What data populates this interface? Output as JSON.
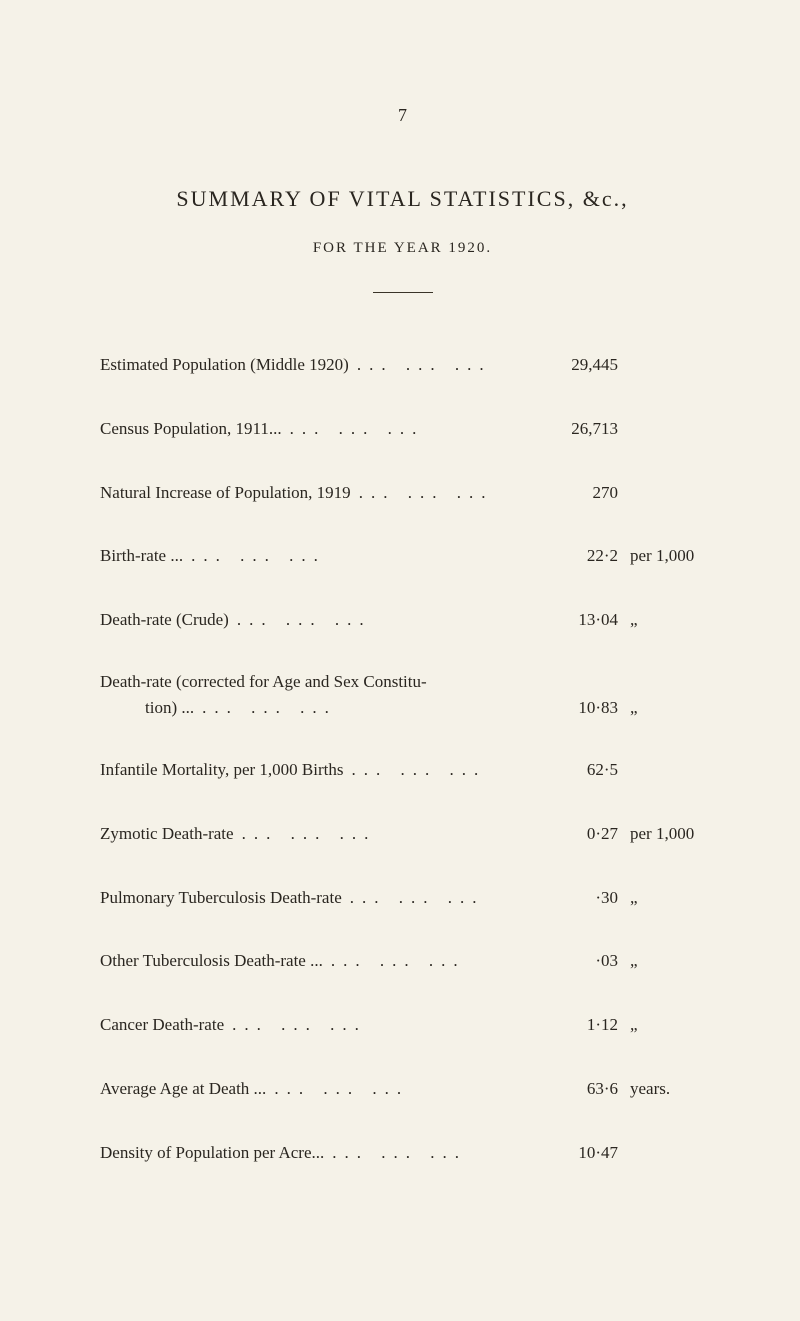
{
  "pageNumber": "7",
  "title": "SUMMARY OF VITAL STATISTICS, &c.,",
  "subtitle": "FOR THE YEAR 1920.",
  "rows": [
    {
      "label": "Estimated Population (Middle 1920)",
      "value": "29,445",
      "unit": ""
    },
    {
      "label": "Census Population, 1911...",
      "value": "26,713",
      "unit": ""
    },
    {
      "label": "Natural Increase of Population, 1919",
      "value": "270",
      "unit": ""
    },
    {
      "label": "Birth-rate ...",
      "value": "22·2",
      "unit": "per 1,000"
    },
    {
      "label": "Death-rate (Crude)",
      "value": "13·04",
      "unit": "„"
    },
    {
      "labelLine1": "Death-rate (corrected for Age and Sex Constitu-",
      "labelLine2": "tion) ...",
      "value": "10·83",
      "unit": "„",
      "multiline": true
    },
    {
      "label": "Infantile Mortality, per 1,000 Births",
      "value": "62·5",
      "unit": ""
    },
    {
      "label": "Zymotic Death-rate",
      "value": "0·27",
      "unit": "per 1,000"
    },
    {
      "label": "Pulmonary Tuberculosis Death-rate",
      "value": "·30",
      "unit": "„"
    },
    {
      "label": "Other Tuberculosis Death-rate ...",
      "value": "·03",
      "unit": "„"
    },
    {
      "label": "Cancer Death-rate",
      "value": "1·12",
      "unit": "„"
    },
    {
      "label": "Average Age at Death ...",
      "value": "63·6",
      "unit": "years."
    },
    {
      "label": "Density of Population per Acre...",
      "value": "10·47",
      "unit": ""
    }
  ],
  "dots": "...     ...     ..."
}
